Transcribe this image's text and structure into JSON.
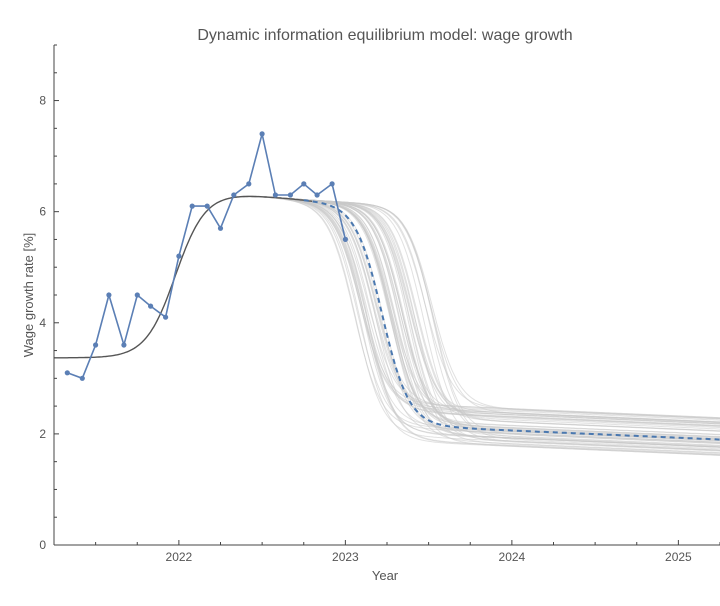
{
  "chart_data": {
    "type": "line",
    "title": "Dynamic information equilibrium model: wage growth",
    "xlabel": "Year",
    "ylabel": "Wage growth rate [%]",
    "xlim": [
      2021.25,
      2025.25
    ],
    "ylim": [
      0,
      9
    ],
    "x_ticks": [
      2022,
      2023,
      2024,
      2025
    ],
    "x_tick_labels": [
      "2022",
      "2023",
      "2024",
      "2025"
    ],
    "y_ticks": [
      0,
      2,
      4,
      6,
      8
    ],
    "y_tick_labels": [
      "0",
      "2",
      "4",
      "6",
      "8"
    ],
    "grid": false,
    "colors": {
      "data": "#5b7fb5",
      "forecast": "#4a78b0",
      "ensemble": "#c8c8c8",
      "fit": "#555555"
    },
    "series": [
      {
        "kind": "data",
        "x": [
          2021.33,
          2021.42,
          2021.5,
          2021.58,
          2021.67,
          2021.75,
          2021.83,
          2021.92,
          2022.0,
          2022.08,
          2022.17,
          2022.25,
          2022.33,
          2022.42,
          2022.5,
          2022.58,
          2022.67,
          2022.75,
          2022.83,
          2022.92,
          2023.0
        ],
        "y": [
          3.1,
          3.0,
          3.6,
          4.5,
          3.6,
          4.5,
          4.3,
          4.1,
          5.2,
          6.1,
          6.1,
          5.7,
          6.3,
          6.5,
          7.4,
          6.3,
          6.3,
          6.5,
          6.3,
          6.5,
          5.5
        ]
      }
    ],
    "model": {
      "baseline_before": 3.37,
      "shock1_center": 2021.98,
      "shock1_width": 0.09,
      "shock1_amplitude": 3.02,
      "shock2_center": 2023.22,
      "shock2_width": 0.08,
      "post_level": 2.1,
      "post_slope": -0.13,
      "forecast_start": 2022.75
    },
    "ensemble": {
      "count": 60,
      "center_range": [
        2023.05,
        2023.55
      ],
      "post_level_range": [
        1.8,
        2.5
      ]
    }
  }
}
